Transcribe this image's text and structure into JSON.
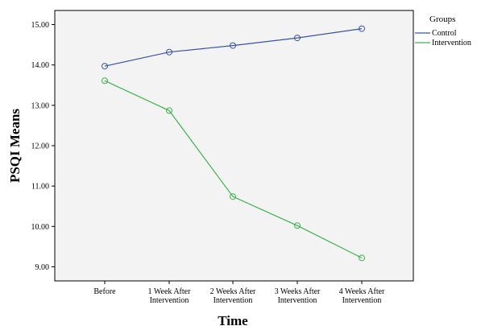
{
  "chart_data": {
    "type": "line",
    "title": "",
    "xlabel": "Time",
    "ylabel": "PSQI Means",
    "categories": [
      [
        "Before"
      ],
      [
        "1 Week After",
        "Intervention"
      ],
      [
        "2 Weeks After",
        "Intervention"
      ],
      [
        "3 Weeks After",
        "Intervention"
      ],
      [
        "4 Weeks After",
        "Intervention"
      ]
    ],
    "yticks": [
      "9.00",
      "10.00",
      "11.00",
      "12.00",
      "13.00",
      "14.00",
      "15.00"
    ],
    "ylim": [
      8.65,
      15.35
    ],
    "grid": false,
    "legend": {
      "title": "Groups",
      "placement": "right"
    },
    "series": [
      {
        "name": "Control",
        "color": "#3953a4",
        "values": [
          13.97,
          14.32,
          14.48,
          14.67,
          14.9
        ]
      },
      {
        "name": "Intervention",
        "color": "#3cb44b",
        "values": [
          13.61,
          12.87,
          10.74,
          10.02,
          9.22
        ]
      }
    ],
    "marker": "open-circle",
    "plot_background": "#f2f3f2"
  }
}
